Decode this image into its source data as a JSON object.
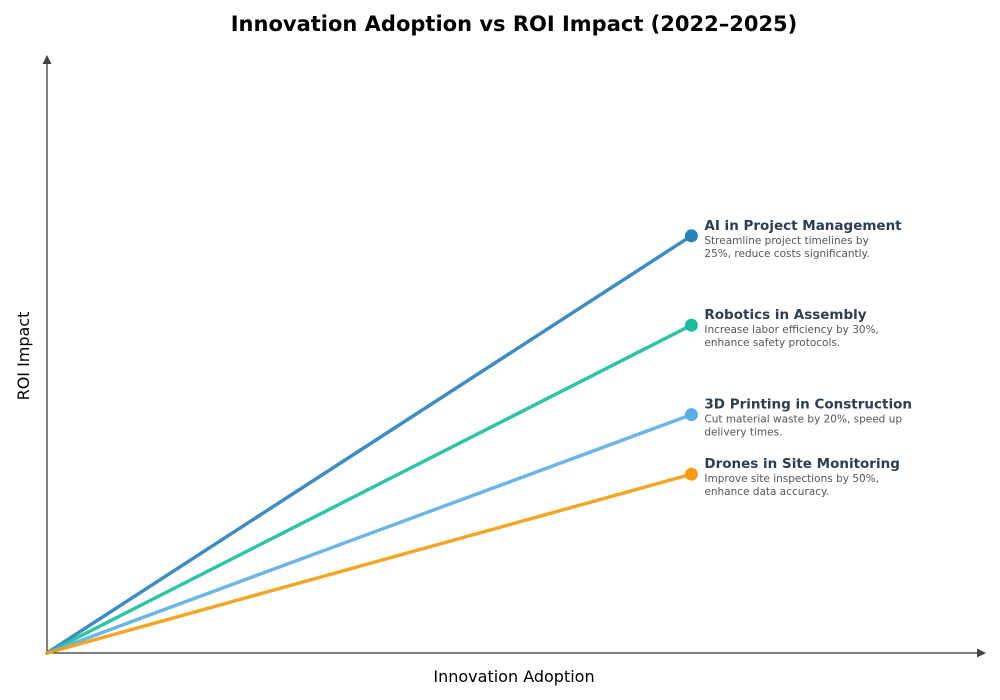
{
  "chart_data": {
    "type": "line",
    "title": "Innovation Adoption vs ROI Impact (2022–2025)",
    "xlabel": "Innovation Adoption",
    "ylabel": "ROI Impact",
    "xlim": [
      0,
      10
    ],
    "ylim": [
      0,
      10
    ],
    "grid": false,
    "ticks": false,
    "series": [
      {
        "name": "AI in Project Management",
        "description": [
          "Streamline project timelines by",
          "25%, reduce costs significantly."
        ],
        "color": "#2980b9",
        "points": [
          [
            0,
            0
          ],
          [
            6.87,
            7.0
          ]
        ]
      },
      {
        "name": "Robotics in Assembly",
        "description": [
          "Increase labor efficiency by 30%,",
          "enhance safety protocols."
        ],
        "color": "#1abc9c",
        "points": [
          [
            0,
            0
          ],
          [
            6.87,
            5.5
          ]
        ]
      },
      {
        "name": "3D Printing in Construction",
        "description": [
          "Cut material waste by 20%, speed up",
          "delivery times."
        ],
        "color": "#5dade2",
        "points": [
          [
            0,
            0
          ],
          [
            6.87,
            4.0
          ]
        ]
      },
      {
        "name": "Drones in Site Monitoring",
        "description": [
          "Improve site inspections by 50%,",
          "enhance data accuracy."
        ],
        "color": "#f39c12",
        "points": [
          [
            0,
            0
          ],
          [
            6.87,
            3.0
          ]
        ]
      }
    ]
  }
}
